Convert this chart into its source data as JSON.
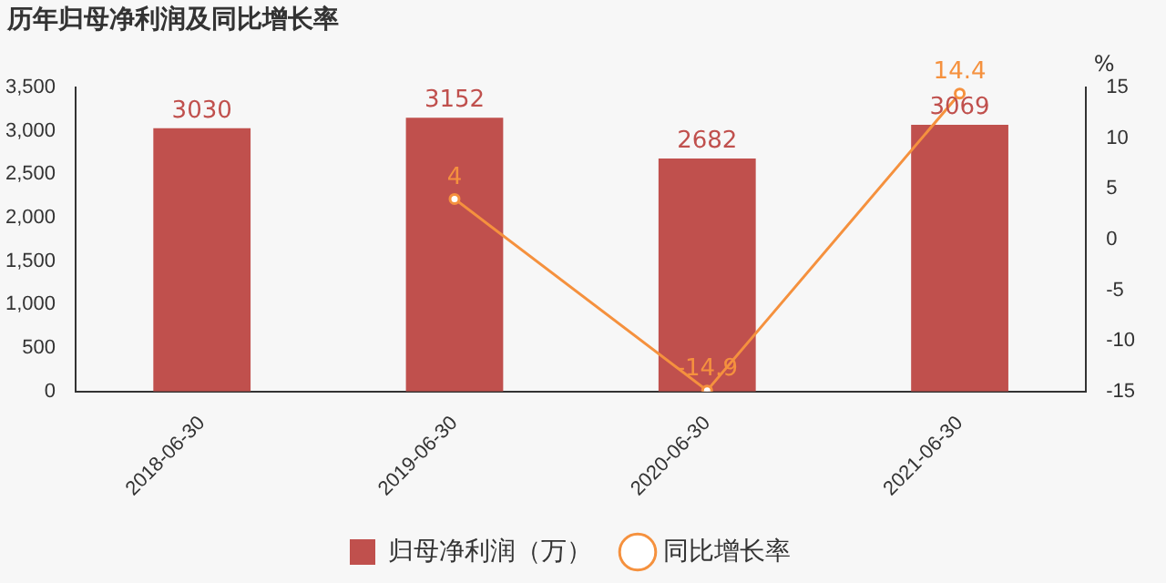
{
  "chart_data": {
    "type": "bar",
    "title": "历年归母净利润及同比增长率",
    "y2label": "%",
    "categories": [
      "2018-06-30",
      "2019-06-30",
      "2020-06-30",
      "2021-06-30"
    ],
    "series": [
      {
        "name": "归母净利润（万）",
        "color": "#c0504d",
        "values": [
          3030,
          3152,
          2682,
          3069
        ]
      },
      {
        "name": "同比增长率",
        "type": "line",
        "axis": "y2",
        "color": "#f5913e",
        "values": [
          null,
          4,
          -14.9,
          14.4
        ]
      }
    ],
    "ylim": [
      0,
      3500
    ],
    "yticks": [
      0,
      500,
      {
        "value": 1000,
        "label": "1,000"
      },
      {
        "value": 1500,
        "label": "1,500"
      },
      {
        "value": 2000,
        "label": "2,000"
      },
      {
        "value": 2500,
        "label": "2,500"
      },
      {
        "value": 3000,
        "label": "3,000"
      },
      {
        "value": 3500,
        "label": "3,500"
      }
    ],
    "y2lim": [
      -15,
      15
    ],
    "y2ticks": [
      -15,
      -10,
      -5,
      0,
      5,
      10,
      15
    ],
    "data_labels": true,
    "legend": "bottom",
    "grid": false,
    "marker": "circle",
    "line_style": "solid"
  }
}
